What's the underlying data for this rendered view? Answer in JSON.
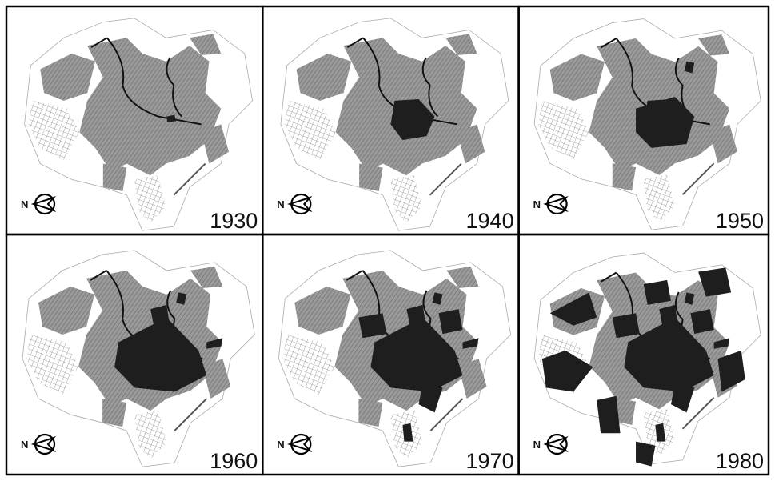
{
  "panels": [
    {
      "year": "1930",
      "north": "N"
    },
    {
      "year": "1940",
      "north": "N"
    },
    {
      "year": "1950",
      "north": "N"
    },
    {
      "year": "1960",
      "north": "N"
    },
    {
      "year": "1970",
      "north": "N"
    },
    {
      "year": "1980",
      "north": "N"
    }
  ]
}
